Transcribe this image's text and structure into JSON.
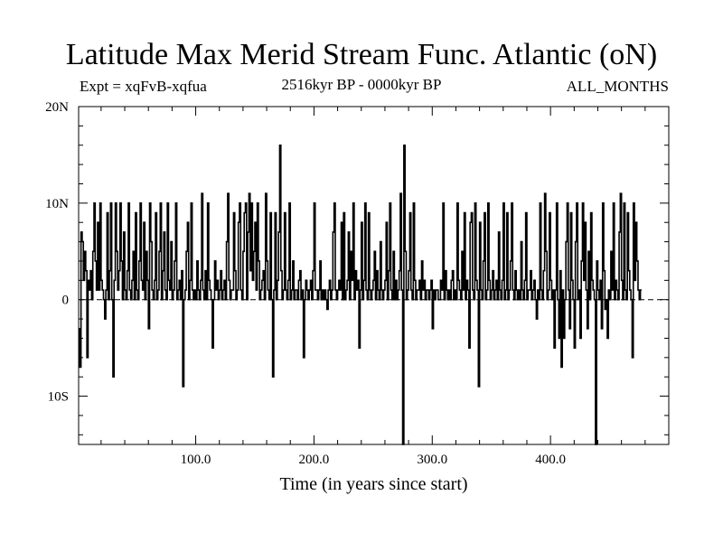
{
  "title": "Latitude Max Merid Stream Func. Atlantic (oN)",
  "subtitle_left": "Expt = xqFvB-xqfua",
  "subtitle_center": "2516kyr BP - 0000kyr BP",
  "subtitle_right": "ALL_MONTHS",
  "chart_data": {
    "type": "line",
    "title": "Latitude Max Merid Stream Func. Atlantic (oN)",
    "xlabel": "Time (in years since start)",
    "ylabel": "",
    "xlim": [
      1,
      500
    ],
    "ylim": [
      -15,
      20
    ],
    "x_ticks": [
      100,
      200,
      300,
      400
    ],
    "x_tick_labels": [
      "100.0",
      "200.0",
      "300.0",
      "400.0"
    ],
    "y_ticks": [
      -10,
      0,
      10,
      20
    ],
    "y_tick_labels": [
      "10S",
      "0",
      "10N",
      "20N"
    ],
    "zero_line": "dashed",
    "grid": false,
    "x_start": 1,
    "x_step": 1,
    "values": [
      -3,
      -7,
      7,
      6,
      2,
      5,
      3,
      -6,
      2,
      1,
      3,
      0,
      5,
      10,
      4,
      1,
      8,
      1,
      10,
      2,
      1,
      0,
      -2,
      1,
      9,
      0,
      3,
      10,
      0,
      -8,
      2,
      10,
      5,
      1,
      3,
      10,
      4,
      0,
      7,
      1,
      0,
      3,
      10,
      1,
      0,
      2,
      5,
      0,
      9,
      1,
      0,
      4,
      10,
      2,
      1,
      8,
      0,
      5,
      2,
      -3,
      10,
      6,
      1,
      0,
      2,
      9,
      0,
      1,
      5,
      10,
      0,
      3,
      7,
      1,
      0,
      10,
      2,
      1,
      6,
      0,
      1,
      4,
      10,
      0,
      1,
      2,
      0,
      3,
      -9,
      0,
      1,
      5,
      8,
      0,
      2,
      10,
      1,
      0,
      1,
      0,
      4,
      1,
      0,
      2,
      11,
      1,
      0,
      3,
      0,
      10,
      2,
      1,
      0,
      -5,
      0,
      4,
      1,
      2,
      0,
      1,
      3,
      0,
      1,
      2,
      0,
      6,
      11,
      2,
      0,
      1,
      1,
      9,
      3,
      0,
      1,
      8,
      10,
      1,
      0,
      5,
      9,
      10,
      0,
      7,
      11,
      3,
      10,
      2,
      5,
      8,
      1,
      10,
      4,
      0,
      1,
      2,
      3,
      0,
      11,
      4,
      1,
      0,
      9,
      0,
      -8,
      1,
      9,
      0,
      2,
      7,
      16,
      3,
      0,
      1,
      9,
      1,
      0,
      2,
      10,
      0,
      1,
      4,
      0,
      1,
      1,
      0,
      2,
      3,
      0,
      1,
      -6,
      0,
      2,
      1,
      0,
      1,
      2,
      0,
      3,
      10,
      1,
      1,
      0,
      1,
      4,
      0,
      1,
      0,
      1,
      0,
      -1,
      1,
      2,
      0,
      1,
      7,
      10,
      1,
      0,
      1,
      2,
      1,
      8,
      0,
      9,
      0,
      1,
      2,
      7,
      0,
      5,
      2,
      10,
      0,
      3,
      1,
      2,
      -5,
      1,
      8,
      0,
      2,
      10,
      1,
      0,
      9,
      1,
      0,
      1,
      2,
      5,
      0,
      3,
      1,
      0,
      6,
      1,
      0,
      1,
      2,
      8,
      0,
      3,
      10,
      1,
      0,
      5,
      0,
      2,
      0,
      1,
      3,
      11,
      1,
      -15,
      16,
      5,
      0,
      1,
      3,
      9,
      1,
      0,
      10,
      2,
      0,
      1,
      1,
      2,
      0,
      4,
      1,
      2,
      0,
      1,
      1,
      0,
      1,
      2,
      -3,
      1,
      0,
      1,
      1,
      0,
      0,
      2,
      1,
      10,
      0,
      3,
      1,
      0,
      1,
      0,
      2,
      3,
      0,
      1,
      0,
      10,
      2,
      1,
      0,
      5,
      1,
      9,
      0,
      2,
      1,
      -5,
      8,
      9,
      1,
      0,
      10,
      2,
      1,
      -9,
      8,
      1,
      0,
      4,
      9,
      0,
      1,
      10,
      2,
      0,
      1,
      3,
      0,
      1,
      2,
      0,
      7,
      1,
      0,
      2,
      10,
      0,
      1,
      9,
      0,
      1,
      4,
      10,
      1,
      0,
      3,
      1,
      0,
      1,
      0,
      6,
      1,
      0,
      2,
      9,
      0,
      1,
      1,
      3,
      0,
      1,
      2,
      0,
      -2,
      1,
      0,
      10,
      1,
      0,
      3,
      11,
      5,
      0,
      1,
      9,
      2,
      0,
      1,
      -5,
      1,
      10,
      0,
      -4,
      3,
      -7,
      1,
      -4,
      0,
      6,
      10,
      1,
      -3,
      9,
      2,
      0,
      -5,
      6,
      10,
      0,
      1,
      -4,
      4,
      10,
      2,
      8,
      1,
      -3,
      5,
      0,
      9,
      2,
      1,
      0,
      -15,
      4,
      1,
      0,
      2,
      -3,
      10,
      3,
      -1,
      0,
      -4,
      1,
      0,
      5,
      1,
      10,
      0,
      2,
      1,
      0,
      7,
      11,
      2,
      0,
      10,
      1,
      0,
      9,
      3,
      1,
      0,
      -6,
      10,
      2,
      8,
      4,
      1,
      0,
      1
    ]
  }
}
